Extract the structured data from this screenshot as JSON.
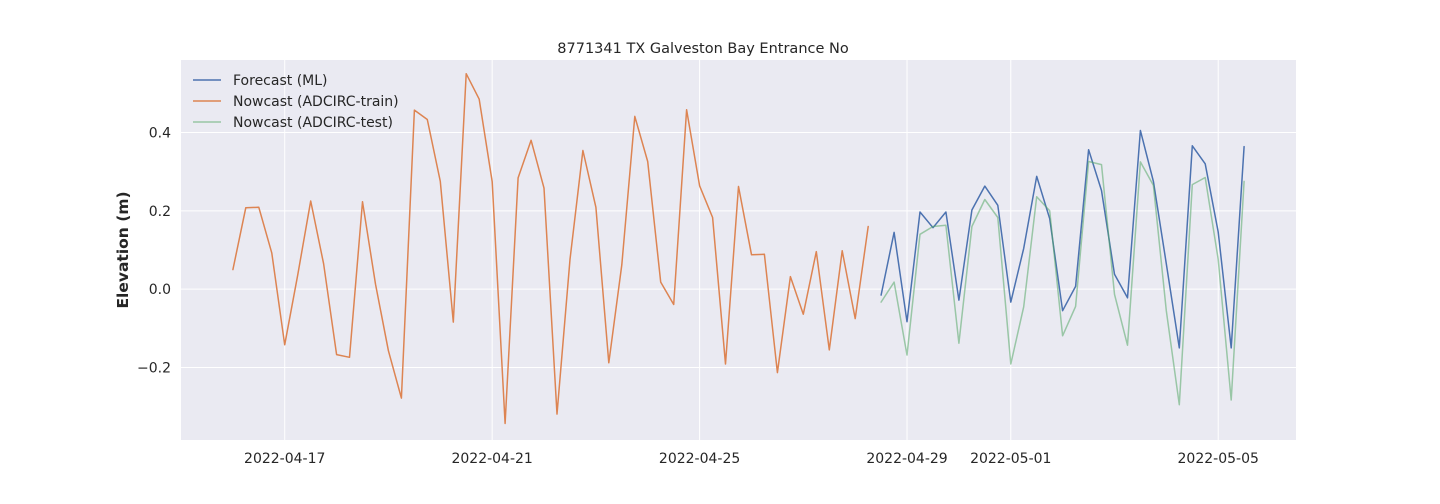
{
  "chart_data": {
    "type": "line",
    "title": "8771341 TX Galveston Bay Entrance No",
    "xlabel": "",
    "ylabel": "Elevation (m)",
    "x_axis": {
      "type": "date",
      "range": [
        "2022-04-15T00:00",
        "2022-05-06T12:00"
      ],
      "ticks": [
        "2022-04-17",
        "2022-04-21",
        "2022-04-25",
        "2022-04-29",
        "2022-05-01",
        "2022-05-05"
      ]
    },
    "y_axis": {
      "range": [
        -0.385,
        0.585
      ],
      "ticks": [
        -0.2,
        0.0,
        0.2,
        0.4
      ],
      "tick_labels": [
        "−0.2",
        "0.0",
        "0.2",
        "0.4"
      ]
    },
    "grid": true,
    "background": "#EAEAF2",
    "legend": {
      "position": "top-left"
    },
    "series": [
      {
        "name": "Forecast (ML)",
        "color": "#4C72B0",
        "opacity": 1,
        "points": [
          [
            "2022-04-28T12:00",
            -0.015
          ],
          [
            "2022-04-28T18:00",
            0.145
          ],
          [
            "2022-04-29T00:00",
            -0.083
          ],
          [
            "2022-04-29T06:00",
            0.197
          ],
          [
            "2022-04-29T12:00",
            0.157
          ],
          [
            "2022-04-29T18:00",
            0.197
          ],
          [
            "2022-04-30T00:00",
            -0.028
          ],
          [
            "2022-04-30T06:00",
            0.202
          ],
          [
            "2022-04-30T12:00",
            0.263
          ],
          [
            "2022-04-30T18:00",
            0.214
          ],
          [
            "2022-05-01T00:00",
            -0.033
          ],
          [
            "2022-05-01T06:00",
            0.104
          ],
          [
            "2022-05-01T12:00",
            0.288
          ],
          [
            "2022-05-01T18:00",
            0.18
          ],
          [
            "2022-05-02T00:00",
            -0.055
          ],
          [
            "2022-05-02T06:00",
            0.007
          ],
          [
            "2022-05-02T12:00",
            0.356
          ],
          [
            "2022-05-02T18:00",
            0.252
          ],
          [
            "2022-05-03T00:00",
            0.038
          ],
          [
            "2022-05-03T06:00",
            -0.022
          ],
          [
            "2022-05-03T12:00",
            0.405
          ],
          [
            "2022-05-03T18:00",
            0.275
          ],
          [
            "2022-05-04T00:00",
            0.065
          ],
          [
            "2022-05-04T06:00",
            -0.15
          ],
          [
            "2022-05-04T12:00",
            0.366
          ],
          [
            "2022-05-04T18:00",
            0.32
          ],
          [
            "2022-05-05T00:00",
            0.146
          ],
          [
            "2022-05-05T06:00",
            -0.15
          ],
          [
            "2022-05-05T12:00",
            0.364
          ]
        ]
      },
      {
        "name": "Nowcast (ADCIRC-train)",
        "color": "#DD8452",
        "opacity": 1,
        "points": [
          [
            "2022-04-16T00:00",
            0.05
          ],
          [
            "2022-04-16T06:00",
            0.208
          ],
          [
            "2022-04-16T12:00",
            0.209
          ],
          [
            "2022-04-16T18:00",
            0.092
          ],
          [
            "2022-04-17T00:00",
            -0.142
          ],
          [
            "2022-04-17T06:00",
            0.036
          ],
          [
            "2022-04-17T12:00",
            0.225
          ],
          [
            "2022-04-17T18:00",
            0.065
          ],
          [
            "2022-04-18T00:00",
            -0.167
          ],
          [
            "2022-04-18T06:00",
            -0.174
          ],
          [
            "2022-04-18T12:00",
            0.223
          ],
          [
            "2022-04-18T18:00",
            0.013
          ],
          [
            "2022-04-19T00:00",
            -0.157
          ],
          [
            "2022-04-19T06:00",
            -0.278
          ],
          [
            "2022-04-19T12:00",
            0.457
          ],
          [
            "2022-04-19T18:00",
            0.433
          ],
          [
            "2022-04-20T00:00",
            0.275
          ],
          [
            "2022-04-20T06:00",
            -0.084
          ],
          [
            "2022-04-20T12:00",
            0.55
          ],
          [
            "2022-04-20T18:00",
            0.485
          ],
          [
            "2022-04-21T00:00",
            0.274
          ],
          [
            "2022-04-21T06:00",
            -0.343
          ],
          [
            "2022-04-21T12:00",
            0.284
          ],
          [
            "2022-04-21T18:00",
            0.38
          ],
          [
            "2022-04-22T00:00",
            0.258
          ],
          [
            "2022-04-22T06:00",
            -0.319
          ],
          [
            "2022-04-22T12:00",
            0.076
          ],
          [
            "2022-04-22T18:00",
            0.354
          ],
          [
            "2022-04-23T00:00",
            0.209
          ],
          [
            "2022-04-23T06:00",
            -0.188
          ],
          [
            "2022-04-23T12:00",
            0.062
          ],
          [
            "2022-04-23T18:00",
            0.441
          ],
          [
            "2022-04-24T00:00",
            0.326
          ],
          [
            "2022-04-24T06:00",
            0.018
          ],
          [
            "2022-04-24T12:00",
            -0.039
          ],
          [
            "2022-04-24T18:00",
            0.458
          ],
          [
            "2022-04-25T00:00",
            0.264
          ],
          [
            "2022-04-25T06:00",
            0.183
          ],
          [
            "2022-04-25T12:00",
            -0.191
          ],
          [
            "2022-04-25T18:00",
            0.262
          ],
          [
            "2022-04-26T00:00",
            0.088
          ],
          [
            "2022-04-26T06:00",
            0.089
          ],
          [
            "2022-04-26T12:00",
            -0.213
          ],
          [
            "2022-04-26T18:00",
            0.032
          ],
          [
            "2022-04-27T00:00",
            -0.064
          ],
          [
            "2022-04-27T06:00",
            0.096
          ],
          [
            "2022-04-27T12:00",
            -0.155
          ],
          [
            "2022-04-27T18:00",
            0.098
          ],
          [
            "2022-04-28T00:00",
            -0.075
          ],
          [
            "2022-04-28T06:00",
            0.16
          ]
        ]
      },
      {
        "name": "Nowcast (ADCIRC-test)",
        "color": "#55A868",
        "opacity": 0.55,
        "points": [
          [
            "2022-04-28T12:00",
            -0.033
          ],
          [
            "2022-04-28T18:00",
            0.018
          ],
          [
            "2022-04-29T00:00",
            -0.168
          ],
          [
            "2022-04-29T06:00",
            0.14
          ],
          [
            "2022-04-29T12:00",
            0.16
          ],
          [
            "2022-04-29T18:00",
            0.163
          ],
          [
            "2022-04-30T00:00",
            -0.138
          ],
          [
            "2022-04-30T06:00",
            0.16
          ],
          [
            "2022-04-30T12:00",
            0.229
          ],
          [
            "2022-04-30T18:00",
            0.183
          ],
          [
            "2022-05-01T00:00",
            -0.191
          ],
          [
            "2022-05-01T06:00",
            -0.045
          ],
          [
            "2022-05-01T12:00",
            0.236
          ],
          [
            "2022-05-01T18:00",
            0.2
          ],
          [
            "2022-05-02T00:00",
            -0.119
          ],
          [
            "2022-05-02T06:00",
            -0.044
          ],
          [
            "2022-05-02T12:00",
            0.326
          ],
          [
            "2022-05-02T18:00",
            0.318
          ],
          [
            "2022-05-03T00:00",
            -0.013
          ],
          [
            "2022-05-03T06:00",
            -0.143
          ],
          [
            "2022-05-03T12:00",
            0.325
          ],
          [
            "2022-05-03T18:00",
            0.265
          ],
          [
            "2022-05-04T00:00",
            -0.055
          ],
          [
            "2022-05-04T06:00",
            -0.295
          ],
          [
            "2022-05-04T12:00",
            0.267
          ],
          [
            "2022-05-04T18:00",
            0.285
          ],
          [
            "2022-05-05T00:00",
            0.076
          ],
          [
            "2022-05-05T06:00",
            -0.283
          ],
          [
            "2022-05-05T12:00",
            0.275
          ]
        ]
      }
    ]
  }
}
